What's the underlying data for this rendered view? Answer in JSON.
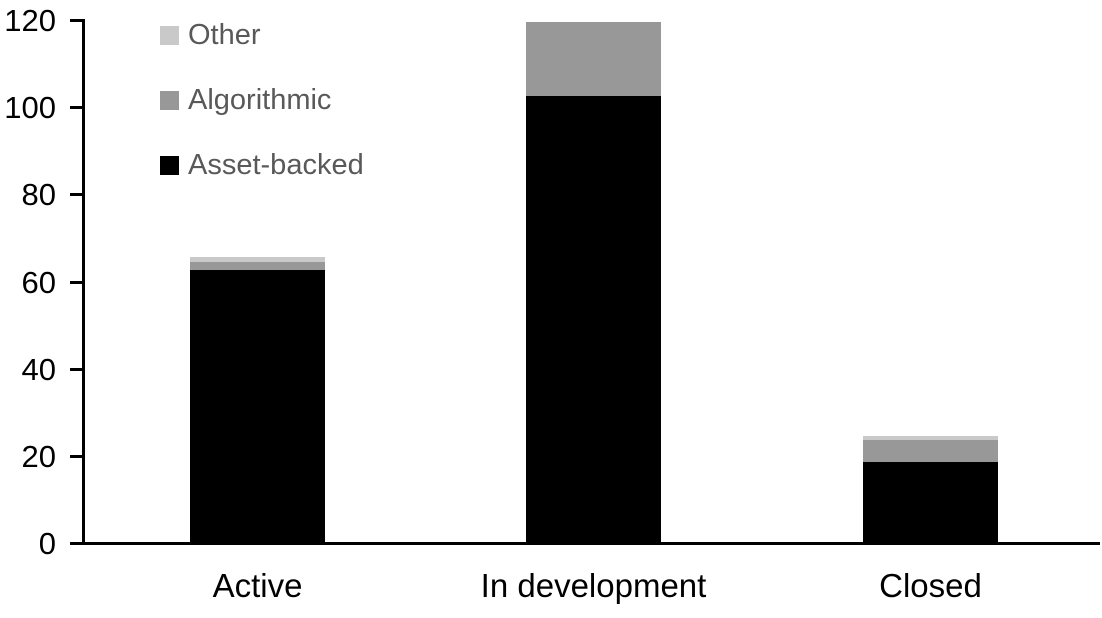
{
  "chart_data": {
    "type": "bar",
    "stacked": true,
    "title": "",
    "xlabel": "",
    "ylabel": "",
    "categories": [
      "Active",
      "In development",
      "Closed"
    ],
    "series": [
      {
        "name": "Asset-backed",
        "color": "#000000",
        "values": [
          63,
          103,
          19
        ]
      },
      {
        "name": "Algorithmic",
        "color": "#989898",
        "values": [
          2,
          17,
          5
        ]
      },
      {
        "name": "Other",
        "color": "#c9c9c9",
        "values": [
          1,
          0,
          1
        ]
      }
    ],
    "totals": [
      66,
      120,
      25
    ],
    "ylim": [
      0,
      120
    ],
    "yticks": [
      0,
      20,
      40,
      60,
      80,
      100,
      120
    ],
    "grid": false,
    "legend_position": "top-left",
    "legend_order_top_to_bottom": [
      "Other",
      "Algorithmic",
      "Asset-backed"
    ]
  },
  "colors": {
    "background": "#ffffff",
    "axis": "#000000",
    "legend_text": "#595959"
  }
}
